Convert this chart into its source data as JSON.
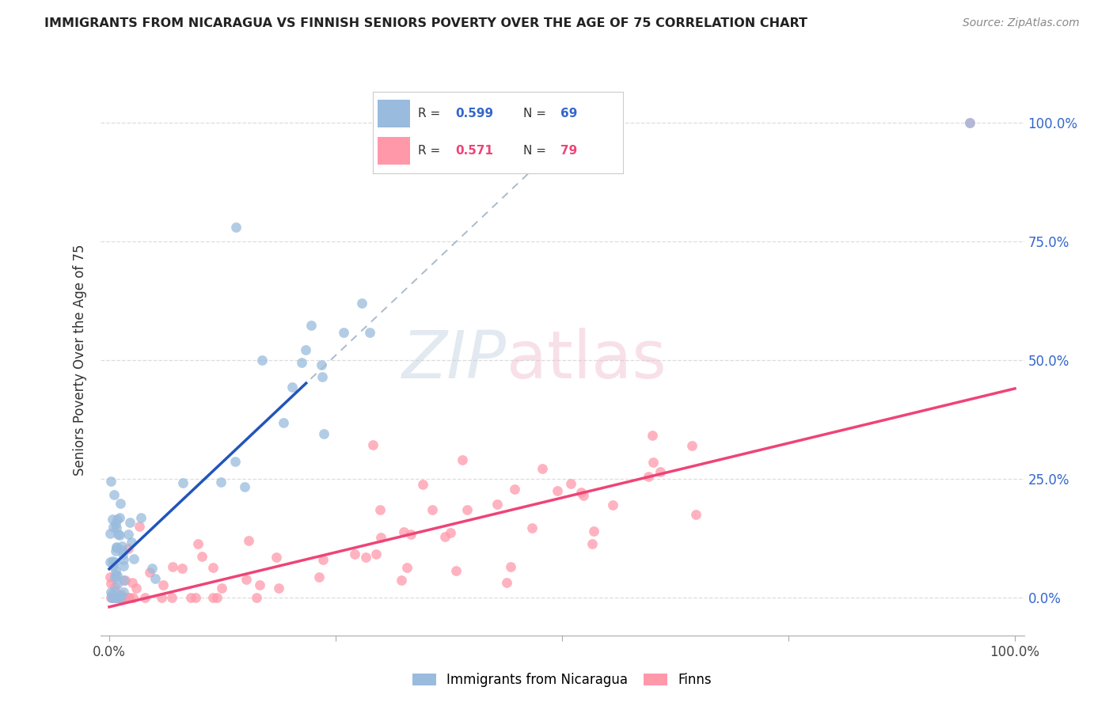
{
  "title": "IMMIGRANTS FROM NICARAGUA VS FINNISH SENIORS POVERTY OVER THE AGE OF 75 CORRELATION CHART",
  "source": "Source: ZipAtlas.com",
  "ylabel": "Seniors Poverty Over the Age of 75",
  "legend_blue_label": "Immigrants from Nicaragua",
  "legend_pink_label": "Finns",
  "blue_R": "0.599",
  "blue_N": 69,
  "pink_R": "0.571",
  "pink_N": 79,
  "blue_color": "#99BBDD",
  "pink_color": "#FF99AA",
  "blue_line_color": "#2255BB",
  "pink_line_color": "#EE4477",
  "blue_dash_color": "#AABBCC",
  "blue_R_color": "#3366CC",
  "pink_R_color": "#EE4477",
  "right_axis_color": "#3366CC",
  "grid_color": "#DDDDDD",
  "blue_slope": 1.8,
  "blue_int": 0.06,
  "pink_slope": 0.46,
  "pink_int": -0.02,
  "xlim": [
    -0.01,
    1.01
  ],
  "ylim": [
    -0.08,
    1.08
  ]
}
